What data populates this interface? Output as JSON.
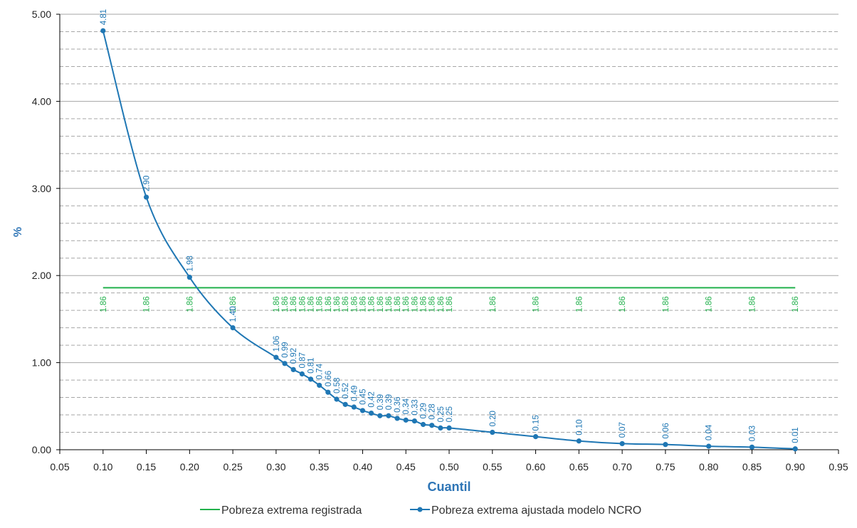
{
  "chart_data": {
    "type": "line",
    "xlabel": "Cuantil",
    "ylabel": "%",
    "xlim": [
      0.05,
      0.95
    ],
    "ylim": [
      0.0,
      5.0
    ],
    "x_ticks": [
      "0.05",
      "0.10",
      "0.15",
      "0.20",
      "0.25",
      "0.30",
      "0.35",
      "0.40",
      "0.45",
      "0.50",
      "0.55",
      "0.60",
      "0.65",
      "0.70",
      "0.75",
      "0.80",
      "0.85",
      "0.90",
      "0.95"
    ],
    "y_ticks": [
      "0.00",
      "1.00",
      "2.00",
      "3.00",
      "4.00",
      "5.00"
    ],
    "grid": {
      "major": true,
      "minor_dashed": true
    },
    "legend_position": "bottom",
    "colors": {
      "registrada": "#22b14c",
      "ajustada": "#1f77b4"
    },
    "x": [
      0.1,
      0.15,
      0.2,
      0.25,
      0.3,
      0.31,
      0.32,
      0.33,
      0.34,
      0.35,
      0.36,
      0.37,
      0.38,
      0.39,
      0.4,
      0.41,
      0.42,
      0.43,
      0.44,
      0.45,
      0.46,
      0.47,
      0.48,
      0.49,
      0.5,
      0.55,
      0.6,
      0.65,
      0.7,
      0.75,
      0.8,
      0.85,
      0.9
    ],
    "series": [
      {
        "name": "Pobreza extrema registrada",
        "values": [
          1.86,
          1.86,
          1.86,
          1.86,
          1.86,
          1.86,
          1.86,
          1.86,
          1.86,
          1.86,
          1.86,
          1.86,
          1.86,
          1.86,
          1.86,
          1.86,
          1.86,
          1.86,
          1.86,
          1.86,
          1.86,
          1.86,
          1.86,
          1.86,
          1.86,
          1.86,
          1.86,
          1.86,
          1.86,
          1.86,
          1.86,
          1.86,
          1.86
        ],
        "labels": [
          "1.86",
          "1.86",
          "1.86",
          "1.86",
          "1.86",
          "1.86",
          "1.86",
          "1.86",
          "1.86",
          "1.86",
          "1.86",
          "1.86",
          "1.86",
          "1.86",
          "1.86",
          "1.86",
          "1.86",
          "1.86",
          "1.86",
          "1.86",
          "1.86",
          "1.86",
          "1.86",
          "1.86",
          "1.86",
          "1.86",
          "1.86",
          "1.86",
          "1.86",
          "1.86",
          "1.86",
          "1.86",
          "1.86"
        ]
      },
      {
        "name": "Pobreza extrema ajustada modelo NCRO",
        "values": [
          4.81,
          2.9,
          1.98,
          1.4,
          1.06,
          0.99,
          0.92,
          0.87,
          0.81,
          0.74,
          0.66,
          0.58,
          0.52,
          0.49,
          0.45,
          0.42,
          0.39,
          0.39,
          0.36,
          0.34,
          0.33,
          0.29,
          0.28,
          0.25,
          0.25,
          0.2,
          0.15,
          0.1,
          0.07,
          0.06,
          0.04,
          0.03,
          0.01
        ],
        "labels": [
          "4.81",
          "2.90",
          "1.98",
          "1.40",
          "1.06",
          "0.99",
          "0.92",
          "0.87",
          "0.81",
          "0.74",
          "0.66",
          "0.58",
          "0.52",
          "0.49",
          "0.45",
          "0.42",
          "0.39",
          "0.39",
          "0.36",
          "0.34",
          "0.33",
          "0.29",
          "0.28",
          "0.25",
          "0.25",
          "0.20",
          "0.15",
          "0.10",
          "0.07",
          "0.06",
          "0.04",
          "0.03",
          "0.01"
        ]
      }
    ]
  }
}
